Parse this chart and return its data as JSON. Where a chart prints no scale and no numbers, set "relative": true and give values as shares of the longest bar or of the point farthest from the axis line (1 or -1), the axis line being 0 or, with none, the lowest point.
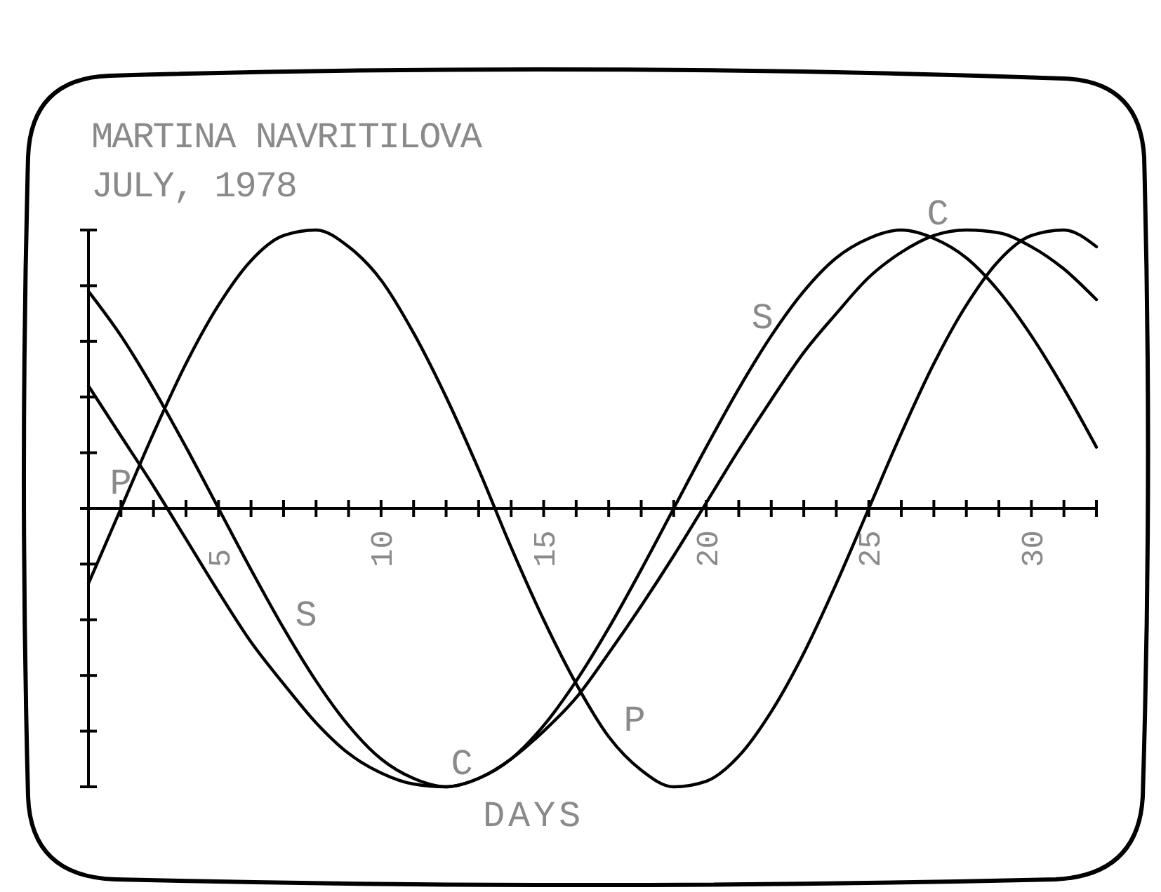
{
  "chart_data": {
    "type": "line",
    "title": "MARTINA NAVRITILOVA",
    "subtitle": "JULY, 1978",
    "xlabel": "DAYS",
    "x": [
      1,
      2,
      3,
      4,
      5,
      6,
      7,
      8,
      9,
      10,
      11,
      12,
      13,
      14,
      15,
      16,
      17,
      18,
      19,
      20,
      21,
      22,
      23,
      24,
      25,
      26,
      27,
      28,
      29,
      30,
      31,
      32
    ],
    "xlim": [
      1,
      32
    ],
    "xticks": [
      {
        "value": 1,
        "label": null
      },
      {
        "value": 2,
        "label": null
      },
      {
        "value": 3,
        "label": null
      },
      {
        "value": 4,
        "label": null
      },
      5,
      {
        "value": 6,
        "label": null
      },
      {
        "value": 7,
        "label": null
      },
      {
        "value": 8,
        "label": null
      },
      {
        "value": 9,
        "label": null
      },
      10,
      {
        "value": 11,
        "label": null
      },
      {
        "value": 12,
        "label": null
      },
      {
        "value": 13,
        "label": null
      },
      {
        "value": 14,
        "label": null
      },
      15,
      {
        "value": 16,
        "label": null
      },
      {
        "value": 17,
        "label": null
      },
      {
        "value": 18,
        "label": null
      },
      {
        "value": 19,
        "label": null
      },
      20,
      {
        "value": 21,
        "label": null
      },
      {
        "value": 22,
        "label": null
      },
      {
        "value": 23,
        "label": null
      },
      {
        "value": 24,
        "label": null
      },
      25,
      {
        "value": 26,
        "label": null
      },
      {
        "value": 27,
        "label": null
      },
      {
        "value": 28,
        "label": null
      },
      {
        "value": 29,
        "label": null
      },
      30,
      {
        "value": 31,
        "label": null
      },
      {
        "value": 32,
        "label": null
      }
    ],
    "relative": true,
    "series": [
      {
        "name": "P",
        "color": "#000000",
        "values": [
          -0.27,
          0,
          0.27,
          0.52,
          0.73,
          0.89,
          0.98,
          1.0,
          0.94,
          0.82,
          0.63,
          0.4,
          0.14,
          -0.14,
          -0.4,
          -0.63,
          -0.82,
          -0.94,
          -1.0,
          -0.98,
          -0.89,
          -0.73,
          -0.52,
          -0.27,
          0,
          0.27,
          0.52,
          0.73,
          0.89,
          0.98,
          1.0,
          0.94
        ]
      },
      {
        "name": "S",
        "color": "#000000",
        "values": [
          0.78,
          0.62,
          0.43,
          0.22,
          0,
          -0.22,
          -0.43,
          -0.62,
          -0.78,
          -0.9,
          -0.97,
          -1.0,
          -0.97,
          -0.9,
          -0.78,
          -0.62,
          -0.43,
          -0.22,
          0,
          0.22,
          0.43,
          0.62,
          0.78,
          0.9,
          0.97,
          1.0,
          0.97,
          0.9,
          0.78,
          0.62,
          0.43,
          0.22
        ]
      },
      {
        "name": "C",
        "color": "#000000",
        "values": [
          0.44,
          0.26,
          0.08,
          -0.11,
          -0.3,
          -0.48,
          -0.63,
          -0.77,
          -0.88,
          -0.95,
          -0.99,
          -1.0,
          -0.97,
          -0.9,
          -0.8,
          -0.68,
          -0.52,
          -0.35,
          -0.17,
          0.02,
          0.21,
          0.39,
          0.56,
          0.7,
          0.83,
          0.92,
          0.98,
          1.0,
          0.99,
          0.94,
          0.86,
          0.75
        ]
      }
    ]
  }
}
